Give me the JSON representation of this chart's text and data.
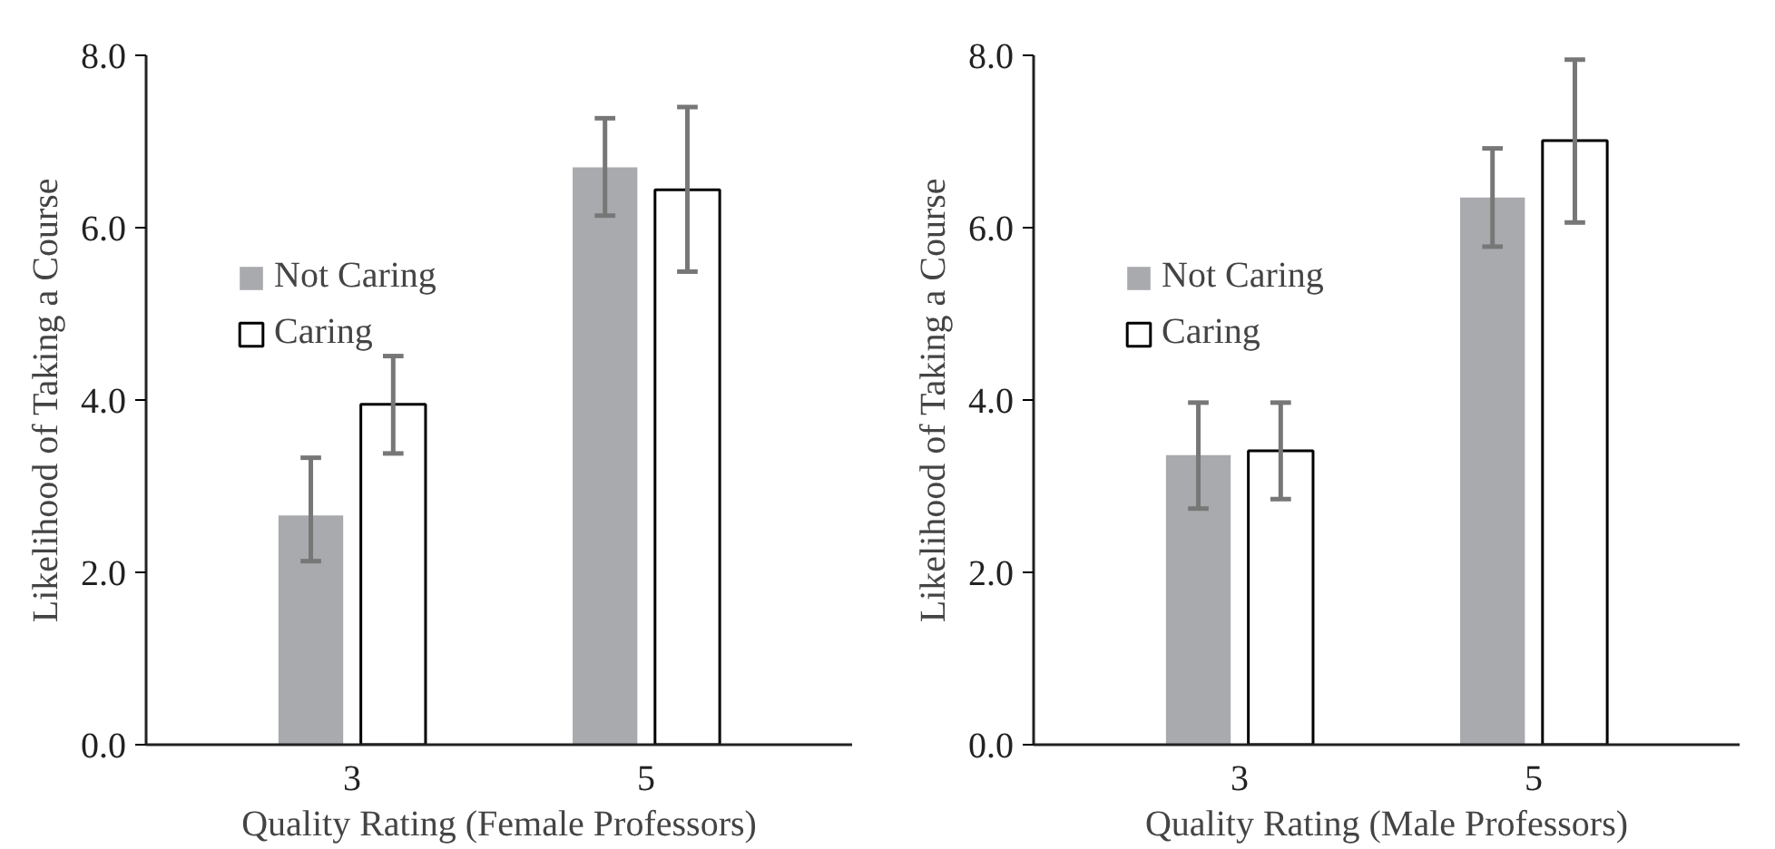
{
  "chart_data": [
    {
      "type": "bar",
      "xlabel": "Quality Rating (Female Professors)",
      "ylabel": "Likelihood of Taking a Course",
      "categories": [
        "3",
        "5"
      ],
      "ylim": [
        0,
        8
      ],
      "yticks": [
        {
          "value": 0,
          "label": "0.0"
        },
        {
          "value": 2,
          "label": "2.0"
        },
        {
          "value": 4,
          "label": "4.0"
        },
        {
          "value": 6,
          "label": "6.0"
        },
        {
          "value": 8,
          "label": "8.0"
        }
      ],
      "legend": "top left",
      "grid": false,
      "series": [
        {
          "name": "Not Caring",
          "color": "#a9aaad",
          "values": [
            2.66,
            6.7
          ],
          "errors": [
            [
              2.13,
              3.33
            ],
            [
              6.14,
              7.27
            ]
          ]
        },
        {
          "name": "Caring",
          "color": "#ffffff",
          "values": [
            3.95,
            6.44
          ],
          "errors": [
            [
              3.38,
              4.51
            ],
            [
              5.49,
              7.4
            ]
          ]
        }
      ]
    },
    {
      "type": "bar",
      "xlabel": "Quality Rating (Male Professors)",
      "ylabel": "Likelihood of Taking a Course",
      "categories": [
        "3",
        "5"
      ],
      "ylim": [
        0,
        8
      ],
      "yticks": [
        {
          "value": 0,
          "label": "0.0"
        },
        {
          "value": 2,
          "label": "2.0"
        },
        {
          "value": 4,
          "label": "4.0"
        },
        {
          "value": 6,
          "label": "6.0"
        },
        {
          "value": 8,
          "label": "8.0"
        }
      ],
      "legend": "top left",
      "grid": false,
      "series": [
        {
          "name": "Not Caring",
          "color": "#a9aaad",
          "values": [
            3.36,
            6.35
          ],
          "errors": [
            [
              2.74,
              3.97
            ],
            [
              5.78,
              6.92
            ]
          ]
        },
        {
          "name": "Caring",
          "color": "#ffffff",
          "values": [
            3.41,
            7.01
          ],
          "errors": [
            [
              2.85,
              3.97
            ],
            [
              6.06,
              7.95
            ]
          ]
        }
      ]
    }
  ]
}
